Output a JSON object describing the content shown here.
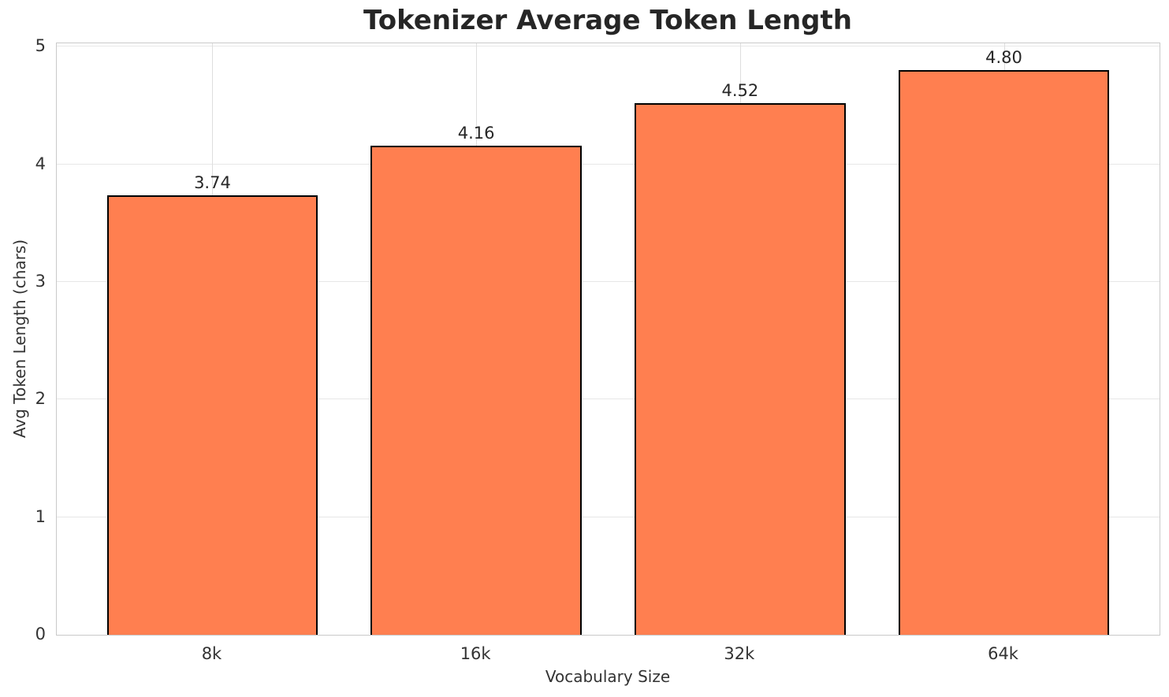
{
  "chart_data": {
    "type": "bar",
    "title": "Tokenizer Average Token Length",
    "xlabel": "Vocabulary Size",
    "ylabel": "Avg Token Length (chars)",
    "categories": [
      "8k",
      "16k",
      "32k",
      "64k"
    ],
    "values": [
      3.74,
      4.16,
      4.52,
      4.8
    ],
    "bar_labels": [
      "3.74",
      "4.16",
      "4.52",
      "4.80"
    ],
    "yticks": [
      0,
      1,
      2,
      3,
      4,
      5
    ],
    "ylim": [
      0,
      5.03
    ],
    "grid": "both",
    "legend": "none",
    "bar_color": "#FF7F50",
    "bar_edge_color": "#000000",
    "colors": {
      "background": "#FFFFFF",
      "spine": "#C9C9C9",
      "grid_horizontal": "#E7E7E7",
      "grid_vertical": "#DEDEDE",
      "title_text": "#262626",
      "tick_text": "#333333",
      "value_label_text": "#262626"
    }
  }
}
